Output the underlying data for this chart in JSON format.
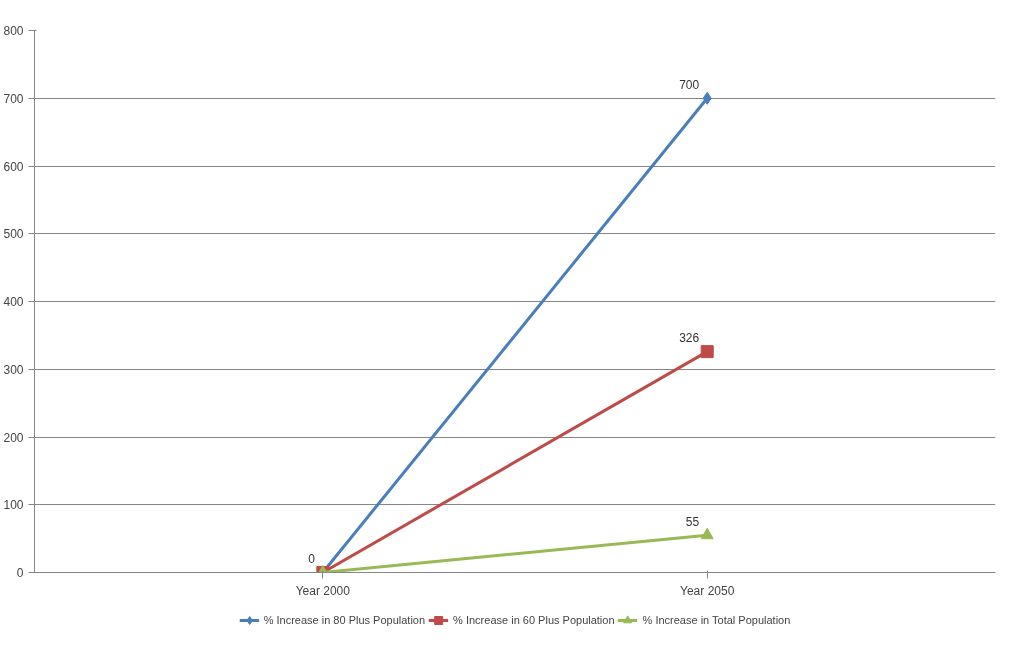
{
  "chart_data": {
    "type": "line",
    "categories": [
      "Year 2000",
      "Year 2050"
    ],
    "ylim": [
      0,
      800
    ],
    "yticks": [
      0,
      100,
      200,
      300,
      400,
      500,
      600,
      700,
      800
    ],
    "grid": "y",
    "legend": "bottom",
    "series": [
      {
        "name": "% Increase in 80 Plus Population",
        "color": "#4a7ebb",
        "marker": "diamond",
        "values": [
          0,
          700
        ],
        "value_labels": [
          "0",
          "700"
        ]
      },
      {
        "name": "% Increase in 60 Plus Population",
        "color": "#be4b48",
        "marker": "square",
        "values": [
          0,
          326
        ],
        "value_labels": [
          null,
          "326"
        ]
      },
      {
        "name": "% Increase in Total Population",
        "color": "#98b954",
        "marker": "triangle",
        "values": [
          0,
          55
        ],
        "value_labels": [
          null,
          "55"
        ]
      }
    ]
  }
}
